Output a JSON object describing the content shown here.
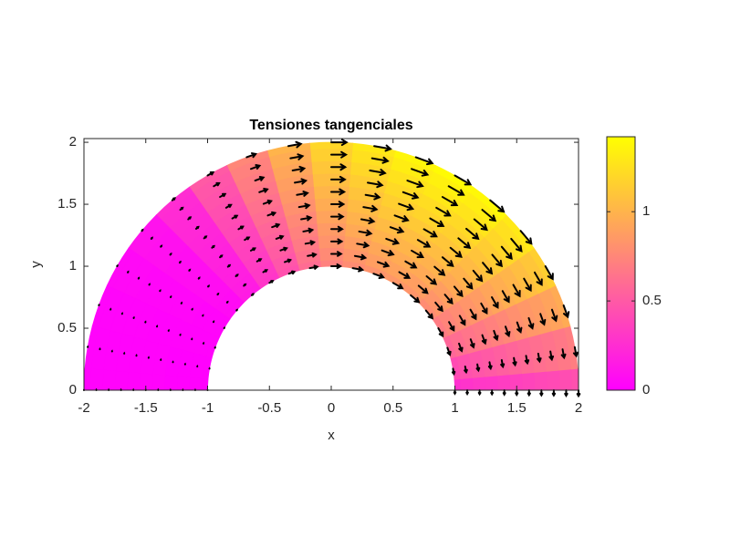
{
  "chart_data": {
    "type": "quiver",
    "title": "Tensiones tangenciales",
    "xlabel": "x",
    "ylabel": "y",
    "xlim": [
      -2,
      2
    ],
    "ylim": [
      0,
      2.03
    ],
    "xticks": [
      -2,
      -1.5,
      -1,
      -0.5,
      0,
      0.5,
      1,
      1.5,
      2
    ],
    "yticks": [
      0,
      0.5,
      1,
      1.5,
      2
    ],
    "r": [
      1,
      1.1,
      1.2,
      1.3,
      1.4,
      1.5,
      1.6,
      1.7,
      1.8,
      1.9,
      2
    ],
    "theta_deg": [
      0,
      10,
      20,
      30,
      40,
      50,
      60,
      70,
      80,
      90,
      100,
      110,
      120,
      130,
      140,
      150,
      160,
      170,
      180
    ],
    "values": [
      [
        0.27,
        0.42,
        0.57,
        0.69,
        0.78,
        0.83,
        0.84,
        0.82,
        0.78,
        0.72,
        0.6,
        0.45,
        0.3,
        0.15,
        0.06,
        0.03,
        0.02,
        0.01,
        0.01
      ],
      [
        0.29,
        0.45,
        0.61,
        0.74,
        0.83,
        0.88,
        0.9,
        0.88,
        0.83,
        0.77,
        0.64,
        0.48,
        0.32,
        0.16,
        0.06,
        0.03,
        0.02,
        0.01,
        0.01
      ],
      [
        0.31,
        0.48,
        0.65,
        0.78,
        0.88,
        0.94,
        0.95,
        0.93,
        0.88,
        0.82,
        0.68,
        0.51,
        0.34,
        0.17,
        0.07,
        0.03,
        0.02,
        0.01,
        0.01
      ],
      [
        0.32,
        0.5,
        0.68,
        0.83,
        0.94,
        0.99,
        1.01,
        0.99,
        0.94,
        0.86,
        0.72,
        0.54,
        0.36,
        0.18,
        0.07,
        0.04,
        0.02,
        0.01,
        0.01
      ],
      [
        0.34,
        0.53,
        0.72,
        0.87,
        0.99,
        1.05,
        1.06,
        1.04,
        0.99,
        0.91,
        0.76,
        0.57,
        0.38,
        0.19,
        0.08,
        0.04,
        0.02,
        0.02,
        0.02
      ],
      [
        0.36,
        0.56,
        0.76,
        0.92,
        1.04,
        1.1,
        1.12,
        1.1,
        1.04,
        0.96,
        0.8,
        0.6,
        0.4,
        0.2,
        0.08,
        0.04,
        0.02,
        0.02,
        0.02
      ],
      [
        0.38,
        0.59,
        0.8,
        0.97,
        1.09,
        1.16,
        1.18,
        1.15,
        1.09,
        1.01,
        0.84,
        0.63,
        0.42,
        0.21,
        0.08,
        0.04,
        0.03,
        0.02,
        0.02
      ],
      [
        0.4,
        0.62,
        0.84,
        1.01,
        1.14,
        1.21,
        1.23,
        1.21,
        1.14,
        1.06,
        0.88,
        0.66,
        0.44,
        0.22,
        0.09,
        0.04,
        0.03,
        0.02,
        0.02
      ],
      [
        0.41,
        0.64,
        0.87,
        1.06,
        1.2,
        1.27,
        1.29,
        1.26,
        1.2,
        1.1,
        0.92,
        0.69,
        0.46,
        0.23,
        0.09,
        0.05,
        0.03,
        0.02,
        0.02
      ],
      [
        0.43,
        0.67,
        0.91,
        1.1,
        1.25,
        1.32,
        1.34,
        1.32,
        1.25,
        1.15,
        0.96,
        0.72,
        0.48,
        0.24,
        0.1,
        0.05,
        0.03,
        0.02,
        0.02
      ],
      [
        0.45,
        0.7,
        0.95,
        1.15,
        1.3,
        1.38,
        1.4,
        1.37,
        1.3,
        1.2,
        1.0,
        0.75,
        0.5,
        0.25,
        0.1,
        0.05,
        0.03,
        0.02,
        0.02
      ]
    ],
    "arrow_color": "#000000",
    "colorbar": {
      "lim": [
        0,
        1.42
      ],
      "ticks": [
        0,
        0.5,
        1
      ],
      "colormap": [
        "#ff00ff",
        "#ffff00"
      ]
    }
  }
}
